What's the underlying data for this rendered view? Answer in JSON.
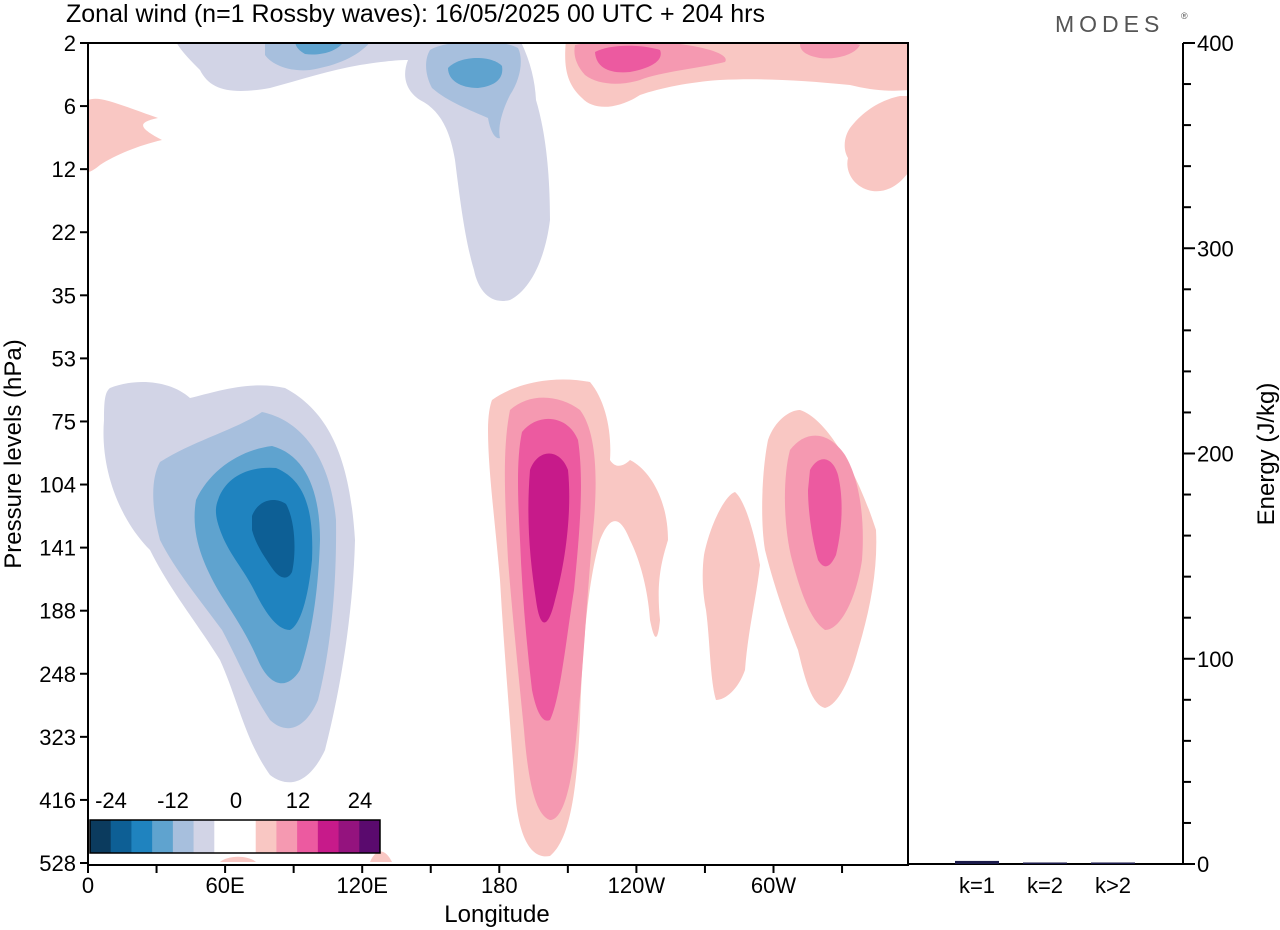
{
  "header": {
    "title": "Zonal wind (n=1 Rossby waves):  16/05/2025  00 UTC  + 204 hrs",
    "brand": "MODES",
    "brand_mark": "®"
  },
  "chart_data": [
    {
      "type": "contour",
      "title": "Zonal wind (n=1 Rossby waves):  16/05/2025  00 UTC  + 204 hrs",
      "xlabel": "Longitude",
      "ylabel": "Pressure levels (hPa)",
      "x_ticks": [
        "0",
        "60E",
        "120E",
        "180",
        "120W",
        "60W"
      ],
      "y_ticks": [
        "2",
        "6",
        "12",
        "22",
        "35",
        "53",
        "75",
        "104",
        "141",
        "188",
        "248",
        "323",
        "416",
        "528"
      ],
      "y_order": "top-to-bottom",
      "colorbar": {
        "labels": [
          "-24",
          "-12",
          "0",
          "12",
          "24"
        ],
        "levels": [
          -30,
          -24,
          -18,
          -12,
          -6,
          -3,
          3,
          6,
          12,
          18,
          24,
          30
        ],
        "colors": [
          "#0b3b5e",
          "#0d5f95",
          "#1f83bf",
          "#5fa3cf",
          "#a7bfdd",
          "#d2d4e6",
          "#ffffff",
          "#ffffff",
          "#f9c7c3",
          "#f599b1",
          "#ec5aa0",
          "#c71a8a",
          "#94137e",
          "#5a0a6e"
        ]
      },
      "features": [
        {
          "name": "negative anomaly 60E-90E",
          "center_lon": 82,
          "center_level_hpa": 141,
          "min_value": -24
        },
        {
          "name": "positive anomaly near 180",
          "center_lon": 200,
          "center_level_hpa": 141,
          "max_value": 18
        },
        {
          "name": "positive anomaly near 40W",
          "center_lon": 318,
          "center_level_hpa": 120,
          "max_value": 12
        },
        {
          "name": "negative anomaly upper levels near 170E",
          "center_lon": 165,
          "center_level_hpa": 3,
          "min_value": -12
        },
        {
          "name": "positive anomaly upper levels near 120W",
          "center_lon": 240,
          "center_level_hpa": 3,
          "max_value": 12
        }
      ]
    },
    {
      "type": "bar",
      "ylabel": "Energy (J/kg)",
      "categories": [
        "k=1",
        "k=2",
        "k>2"
      ],
      "values": [
        1.5,
        0.3,
        0.5
      ],
      "ylim": [
        0,
        400
      ],
      "y_ticks": [
        "0",
        "100",
        "200",
        "300",
        "400"
      ],
      "bar_color": "#1a1a4a"
    }
  ]
}
